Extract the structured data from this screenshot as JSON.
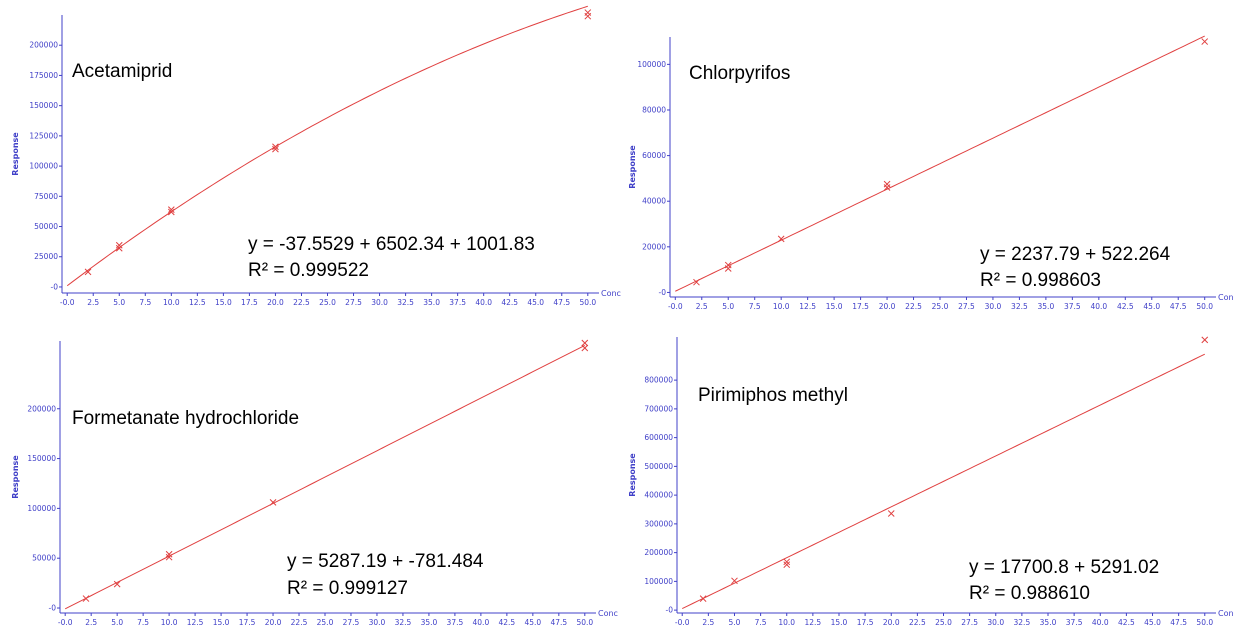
{
  "colors": {
    "axis": "#4040c8",
    "series": "#e04040",
    "text": "#000000"
  },
  "chart_data": [
    {
      "type": "scatter",
      "title": "Acetamiprid",
      "xlabel": "Conc",
      "ylabel": "Response",
      "xlim": [
        -0.5,
        50.5
      ],
      "ylim": [
        -5000,
        225000
      ],
      "x_ticks": [
        "-0.0",
        "2.5",
        "5.0",
        "7.5",
        "10.0",
        "12.5",
        "15.0",
        "17.5",
        "20.0",
        "22.5",
        "25.0",
        "27.5",
        "30.0",
        "32.5",
        "35.0",
        "37.5",
        "40.0",
        "42.5",
        "45.0",
        "47.5",
        "50.0"
      ],
      "y_ticks": [
        {
          "v": 0,
          "label": "-0"
        },
        {
          "v": 25000,
          "label": "25000"
        },
        {
          "v": 50000,
          "label": "50000"
        },
        {
          "v": 75000,
          "label": "75000"
        },
        {
          "v": 100000,
          "label": "100000"
        },
        {
          "v": 125000,
          "label": "125000"
        },
        {
          "v": 150000,
          "label": "150000"
        },
        {
          "v": 175000,
          "label": "175000"
        },
        {
          "v": 200000,
          "label": "200000"
        }
      ],
      "points": [
        [
          2,
          12500
        ],
        [
          5,
          32000
        ],
        [
          5,
          34500
        ],
        [
          10,
          62000
        ],
        [
          10,
          64000
        ],
        [
          20,
          114000
        ],
        [
          20,
          116000
        ],
        [
          50,
          224000
        ],
        [
          50,
          227000
        ]
      ],
      "fit": {
        "kind": "quadratic",
        "a": -37.5529,
        "b": 6502.34,
        "c": 1001.83
      },
      "equation": "y = -37.5529 + 6502.34 + 1001.83",
      "r2": "R² = 0.999522"
    },
    {
      "type": "scatter",
      "title": "Chlorpyrifos",
      "xlabel": "Conc",
      "ylabel": "Response",
      "xlim": [
        -0.5,
        50.5
      ],
      "ylim": [
        -2000,
        112000
      ],
      "x_ticks": [
        "-0.0",
        "2.5",
        "5.0",
        "7.5",
        "10.0",
        "12.5",
        "15.0",
        "17.5",
        "20.0",
        "22.5",
        "25.0",
        "27.5",
        "30.0",
        "32.5",
        "35.0",
        "37.5",
        "40.0",
        "42.5",
        "45.0",
        "47.5",
        "50.0"
      ],
      "y_ticks": [
        {
          "v": 0,
          "label": "-0"
        },
        {
          "v": 20000,
          "label": "20000"
        },
        {
          "v": 40000,
          "label": "40000"
        },
        {
          "v": 60000,
          "label": "60000"
        },
        {
          "v": 80000,
          "label": "80000"
        },
        {
          "v": 100000,
          "label": "100000"
        }
      ],
      "points": [
        [
          2,
          4500
        ],
        [
          5,
          10500
        ],
        [
          5,
          12000
        ],
        [
          10,
          23500
        ],
        [
          20,
          46000
        ],
        [
          20,
          47500
        ],
        [
          50,
          110000
        ]
      ],
      "fit": {
        "kind": "linear",
        "m": 2237.79,
        "b": 522.264
      },
      "equation": "y = 2237.79 + 522.264",
      "r2": "R² = 0.998603"
    },
    {
      "type": "scatter",
      "title": "Formetanate hydrochloride",
      "xlabel": "Conc",
      "ylabel": "Response",
      "xlim": [
        -0.5,
        50.5
      ],
      "ylim": [
        -5000,
        268000
      ],
      "x_ticks": [
        "-0.0",
        "2.5",
        "5.0",
        "7.5",
        "10.0",
        "12.5",
        "15.0",
        "17.5",
        "20.0",
        "22.5",
        "25.0",
        "27.5",
        "30.0",
        "32.5",
        "35.0",
        "37.5",
        "40.0",
        "42.5",
        "45.0",
        "47.5",
        "50.0"
      ],
      "y_ticks": [
        {
          "v": 0,
          "label": "-0"
        },
        {
          "v": 50000,
          "label": "50000"
        },
        {
          "v": 100000,
          "label": "100000"
        },
        {
          "v": 150000,
          "label": "150000"
        },
        {
          "v": 200000,
          "label": "200000"
        }
      ],
      "points": [
        [
          2,
          9500
        ],
        [
          5,
          24000
        ],
        [
          10,
          51000
        ],
        [
          10,
          54000
        ],
        [
          20,
          106000
        ],
        [
          50,
          261000
        ],
        [
          50,
          266000
        ]
      ],
      "fit": {
        "kind": "linear",
        "m": 5287.19,
        "b": -781.484
      },
      "equation": "y = 5287.19 + -781.484",
      "r2": "R² = 0.999127"
    },
    {
      "type": "scatter",
      "title": "Pirimiphos methyl",
      "xlabel": "Conc",
      "ylabel": "Response",
      "xlim": [
        -0.5,
        50.5
      ],
      "ylim": [
        -10000,
        950000
      ],
      "x_ticks": [
        "-0.0",
        "2.5",
        "5.0",
        "7.5",
        "10.0",
        "12.5",
        "15.0",
        "17.5",
        "20.0",
        "22.5",
        "25.0",
        "27.5",
        "30.0",
        "32.5",
        "35.0",
        "37.5",
        "40.0",
        "42.5",
        "45.0",
        "47.5",
        "50.0"
      ],
      "y_ticks": [
        {
          "v": 0,
          "label": "-0"
        },
        {
          "v": 100000,
          "label": "100000"
        },
        {
          "v": 200000,
          "label": "200000"
        },
        {
          "v": 300000,
          "label": "300000"
        },
        {
          "v": 400000,
          "label": "400000"
        },
        {
          "v": 500000,
          "label": "500000"
        },
        {
          "v": 600000,
          "label": "600000"
        },
        {
          "v": 700000,
          "label": "700000"
        },
        {
          "v": 800000,
          "label": "800000"
        }
      ],
      "points": [
        [
          2,
          40000
        ],
        [
          5,
          102000
        ],
        [
          10,
          158000
        ],
        [
          10,
          168000
        ],
        [
          20,
          336000
        ],
        [
          50,
          940000
        ]
      ],
      "fit": {
        "kind": "linear",
        "m": 17700.8,
        "b": 5291.02
      },
      "equation": "y = 17700.8 + 5291.02",
      "r2": "R² = 0.988610"
    }
  ]
}
